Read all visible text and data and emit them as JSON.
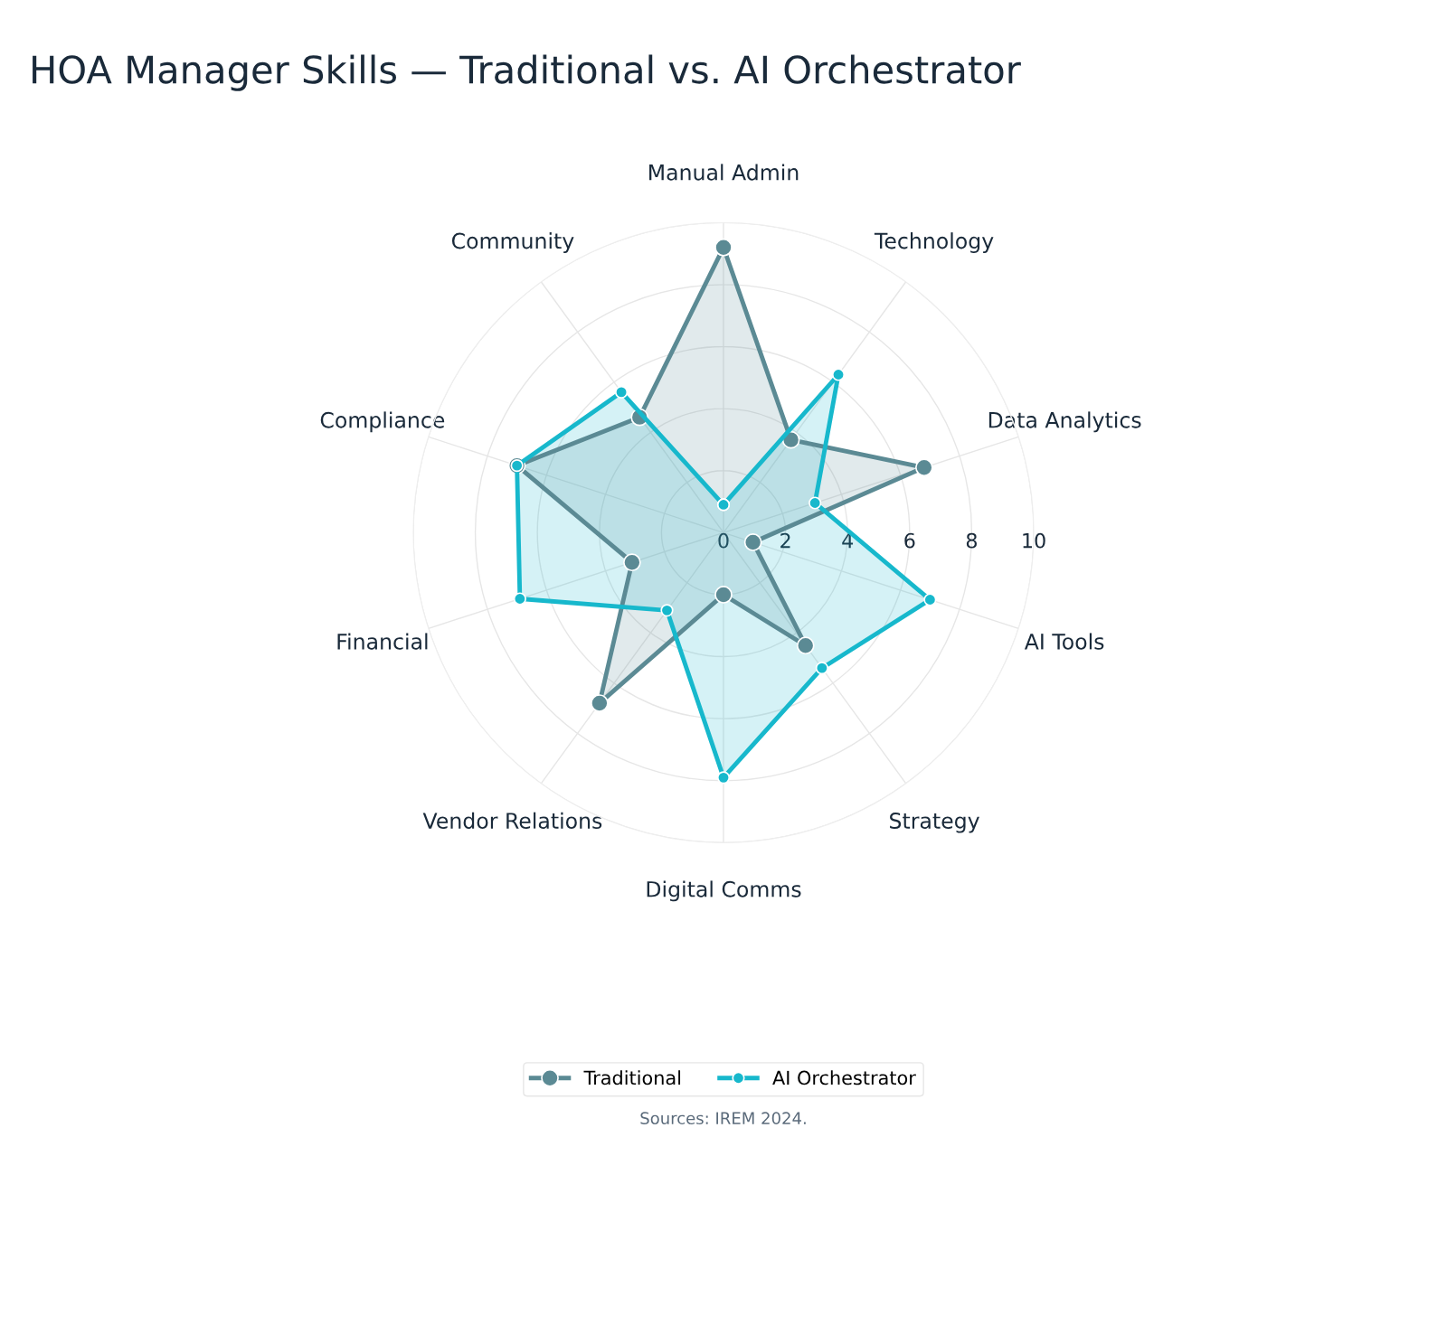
{
  "chart_data": {
    "type": "radar",
    "title": "HOA Manager Skills — Traditional vs. AI Orchestrator",
    "categories": [
      "Manual Admin",
      "Technology",
      "Data Analytics",
      "AI Tools",
      "Strategy",
      "Digital Comms",
      "Vendor Relations",
      "Financial",
      "Compliance",
      "Community"
    ],
    "series": [
      {
        "name": "Traditional",
        "color": "#5b8a94",
        "values": [
          9.2,
          3.7,
          6.8,
          1,
          4.5,
          2,
          6.8,
          3.1,
          7,
          4.6
        ]
      },
      {
        "name": "AI Orchestrator",
        "color": "#17b8cc",
        "values": [
          0.9,
          6.3,
          3.1,
          7,
          5.4,
          7.9,
          3.1,
          6.9,
          7,
          5.6
        ]
      }
    ],
    "ylim": [
      0,
      10
    ],
    "yticks": [
      0,
      2,
      4,
      6,
      8,
      10
    ],
    "grid": true,
    "legend": "bottom",
    "marker": "circle",
    "annotations": [
      "Sources: IREM 2024."
    ]
  }
}
